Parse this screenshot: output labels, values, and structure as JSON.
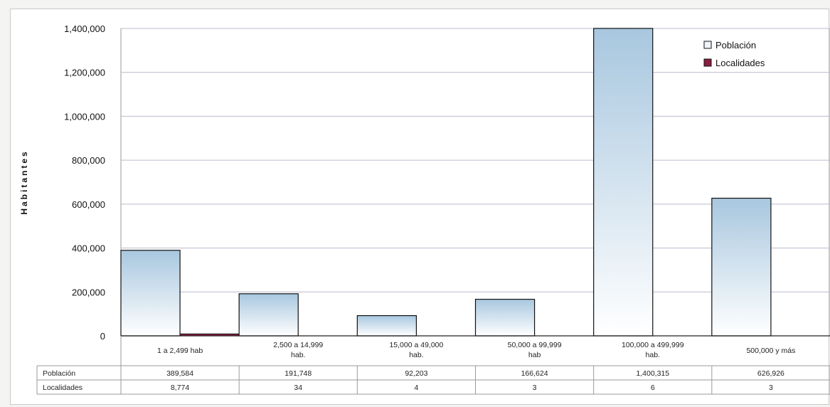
{
  "chart_data": {
    "type": "bar",
    "ylabel": "Habitantes",
    "ylim": [
      0,
      1400000
    ],
    "yticks": [
      0,
      200000,
      400000,
      600000,
      800000,
      1000000,
      1200000,
      1400000
    ],
    "ytick_labels": [
      "0",
      "200,000",
      "400,000",
      "600,000",
      "800,000",
      "1,000,000",
      "1,200,000",
      "1,400,000"
    ],
    "categories": [
      [
        "1 a 2,499 hab"
      ],
      [
        "2,500 a 14,999",
        "hab."
      ],
      [
        "15,000 a 49,000",
        "hab."
      ],
      [
        "50,000 a 99,999",
        "hab"
      ],
      [
        "100,000 a 499,999",
        "hab."
      ],
      [
        "500,000 y más"
      ]
    ],
    "series": [
      {
        "name": "Población",
        "color": "#a9c8e0",
        "values": [
          389584,
          191748,
          92203,
          166624,
          1400315,
          626926
        ]
      },
      {
        "name": "Localidades",
        "color": "#8b1e3f",
        "values": [
          8774,
          34,
          4,
          3,
          6,
          3
        ]
      }
    ],
    "legend_position": "top-right",
    "grid": true,
    "data_table": {
      "rows": [
        {
          "label": "Población",
          "values": [
            "389,584",
            "191,748",
            "92,203",
            "166,624",
            "1,400,315",
            "626,926"
          ]
        },
        {
          "label": "Localidades",
          "values": [
            "8,774",
            "34",
            "4",
            "3",
            "6",
            "3"
          ]
        }
      ]
    }
  }
}
